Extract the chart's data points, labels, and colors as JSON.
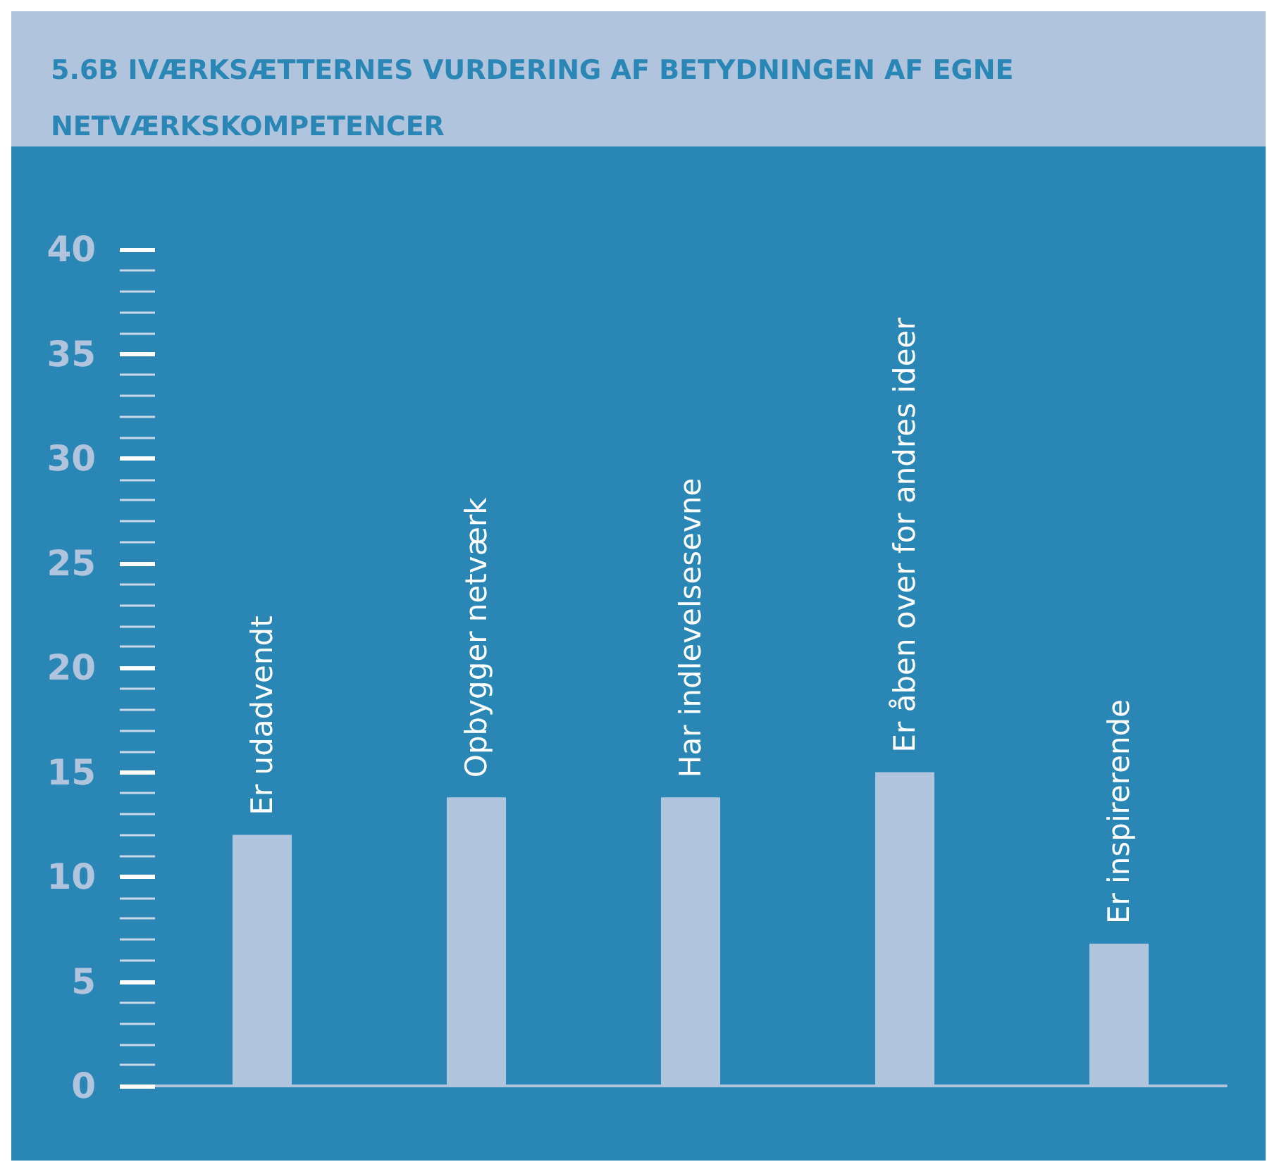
{
  "chart_data": {
    "type": "bar",
    "title": "5.6B IVÆRKSÆTTERNES VURDERING AF BETYDNINGEN AF EGNE NETVÆRKSKOMPETENCER",
    "categories": [
      "Er udadvendt",
      "Opbygger netværk",
      "Har indlevelsesevne",
      "Er åben over for andres ideer",
      "Er inspirerende"
    ],
    "values": [
      12,
      13.8,
      13.8,
      15,
      6.8
    ],
    "color": "#b0c4de",
    "ylim": [
      0,
      40
    ],
    "yticks": [
      0,
      5,
      10,
      15,
      20,
      25,
      30,
      35,
      40
    ],
    "grid": false
  }
}
